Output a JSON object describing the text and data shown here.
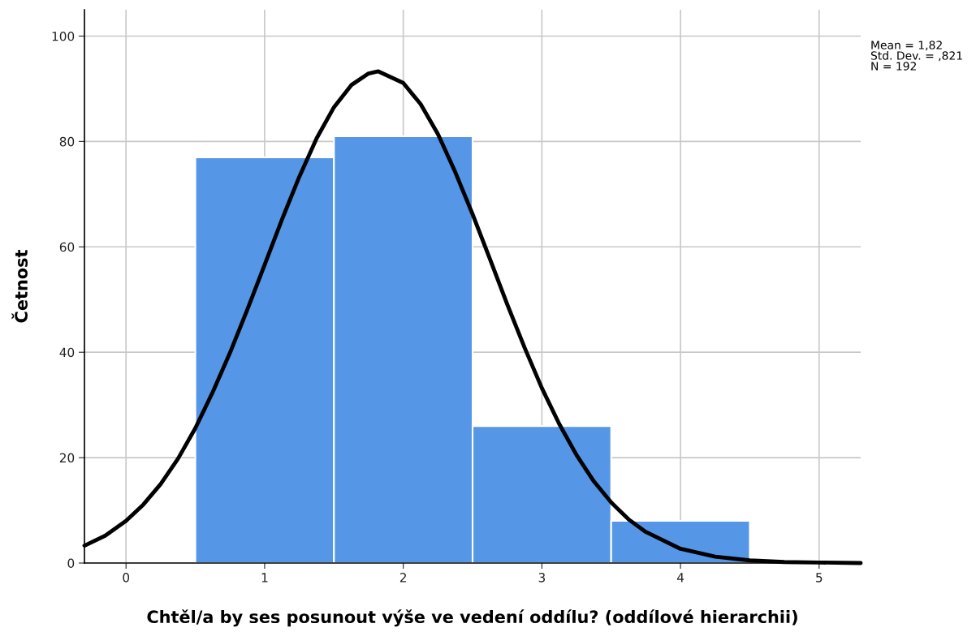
{
  "chart_data": {
    "type": "histogram",
    "xlabel": "Chtěl/a by ses posunout výše ve vedení oddílu? (oddílové hierarchii)",
    "ylabel": "Četnost",
    "bins": [
      0.5,
      1.5,
      2.5,
      3.5,
      4.5
    ],
    "values": [
      77,
      81,
      26,
      8
    ],
    "color": "#5596e6",
    "series": [
      {
        "type": "line",
        "color": "#000000",
        "x": [
          -0.3,
          -0.15,
          0,
          0.125,
          0.25,
          0.375,
          0.5,
          0.625,
          0.75,
          0.875,
          1.0,
          1.125,
          1.25,
          1.375,
          1.5,
          1.625,
          1.75,
          1.82,
          2.0,
          2.125,
          2.25,
          2.375,
          2.5,
          2.625,
          2.75,
          2.875,
          3.0,
          3.125,
          3.25,
          3.375,
          3.5,
          3.625,
          3.75,
          4.0,
          4.25,
          4.5,
          4.75,
          5.0,
          5.3
        ],
        "values": [
          3.3,
          5.2,
          8.0,
          11.1,
          15.0,
          19.8,
          25.6,
          32.4,
          39.9,
          48.1,
          56.6,
          65.2,
          73.3,
          80.6,
          86.5,
          90.7,
          92.9,
          93.3,
          91.1,
          87.1,
          81.4,
          74.2,
          66.2,
          57.7,
          49.1,
          40.9,
          33.2,
          26.4,
          20.5,
          15.5,
          11.5,
          8.3,
          5.9,
          2.7,
          1.2,
          0.5,
          0.2,
          0.1,
          0.0
        ]
      }
    ],
    "xlim": [
      -0.3,
      5.3
    ],
    "xticks": [
      0,
      1,
      2,
      3,
      4,
      5
    ],
    "ylim": [
      0,
      105
    ],
    "yticks": [
      0,
      20,
      40,
      60,
      80,
      100
    ],
    "grid": true,
    "annotations": [
      "Mean = 1,82",
      "Std. Dev. = ,821",
      "N = 192"
    ]
  }
}
